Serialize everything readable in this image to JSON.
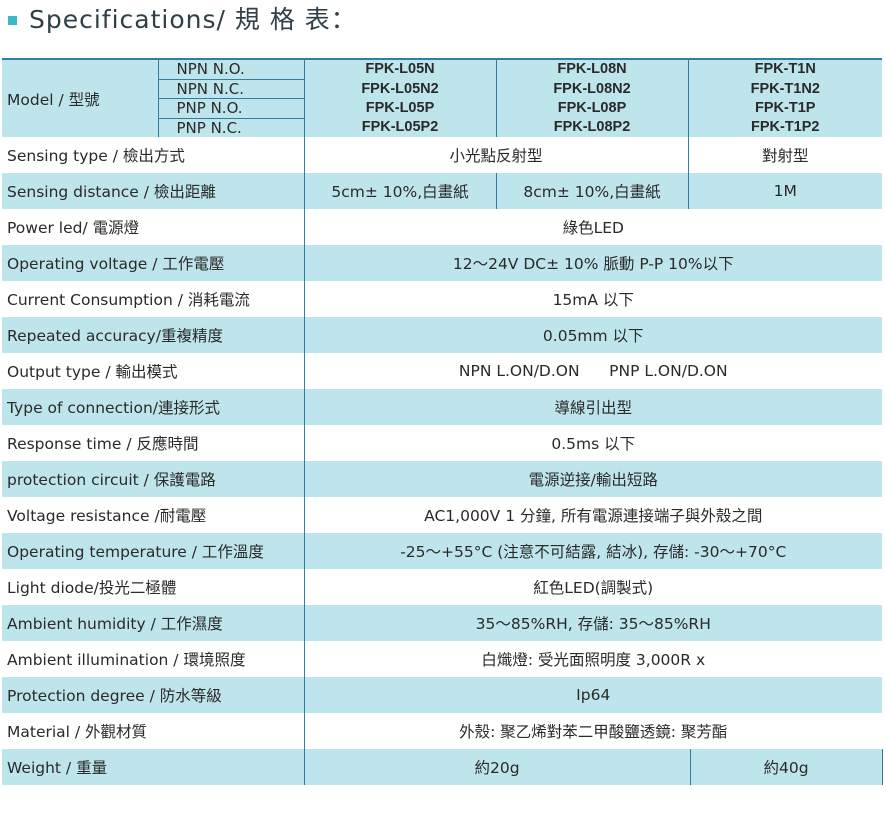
{
  "heading": "Specifications/ 規 格 表：",
  "model_label": "Model / 型號",
  "model_subs": [
    "NPN N.O.",
    "NPN N.C.",
    "PNP N.O.",
    "PNP N.C."
  ],
  "model_cols": [
    [
      "FPK-L05N",
      "FPK-L05N2",
      "FPK-L05P",
      "FPK-L05P2"
    ],
    [
      "FPK-L08N",
      "FPK-L08N2",
      "FPK-L08P",
      "FPK-L08P2"
    ],
    [
      "FPK-T1N",
      "FPK-T1N2",
      "FPK-T1P",
      "FPK-T1P2"
    ]
  ],
  "rows": [
    {
      "label": "Sensing type / 檢出方式",
      "cells": [
        "小光點反射型",
        "對射型"
      ]
    },
    {
      "label": "Sensing distance / 檢出距離",
      "cells": [
        "5cm± 10%,白畫紙",
        "8cm± 10%,白畫紙",
        "1M"
      ]
    },
    {
      "label": "Power led/ 電源燈",
      "cells": [
        "綠色LED"
      ]
    },
    {
      "label": "Operating voltage / 工作電壓",
      "cells": [
        "12～24V DC± 10% 脈動 P-P 10%以下"
      ]
    },
    {
      "label": "Current Consumption / 消耗電流",
      "cells": [
        "15mA 以下"
      ]
    },
    {
      "label": "Repeated accuracy/重複精度",
      "cells": [
        "0.05mm 以下"
      ]
    },
    {
      "label": "Output type / 輸出模式",
      "cells": [
        "NPN L.ON/D.ON      PNP L.ON/D.ON"
      ]
    },
    {
      "label": "Type of connection/連接形式",
      "cells": [
        "導線引出型"
      ]
    },
    {
      "label": "Response time / 反應時間",
      "cells": [
        "0.5ms 以下"
      ]
    },
    {
      "label": "protection circuit / 保護電路",
      "cells": [
        "電源逆接/輸出短路"
      ]
    },
    {
      "label": "Voltage resistance /耐電壓",
      "cells": [
        "AC1,000V 1 分鐘, 所有電源連接端子與外殼之間"
      ]
    },
    {
      "label": "Operating temperature / 工作溫度",
      "cells": [
        "-25～+55°C (注意不可結露, 結冰), 存儲: -30～+70°C"
      ]
    },
    {
      "label": "Light diode/投光二極體",
      "cells": [
        "紅色LED(調製式)"
      ]
    },
    {
      "label": "Ambient humidity / 工作濕度",
      "cells": [
        "35～85%RH, 存儲: 35～85%RH"
      ]
    },
    {
      "label": "Ambient illumination / 環境照度",
      "cells": [
        "白熾燈: 受光面照明度 3,000R x"
      ]
    },
    {
      "label": "Protection degree / 防水等級",
      "cells": [
        "Ip64"
      ]
    },
    {
      "label": "Material / 外觀材質",
      "cells": [
        "外殼: 聚乙烯對苯二甲酸鹽透鏡: 聚芳酯"
      ]
    },
    {
      "label": "Weight / 重量",
      "cells": [
        "約20g",
        "約40g"
      ]
    }
  ]
}
